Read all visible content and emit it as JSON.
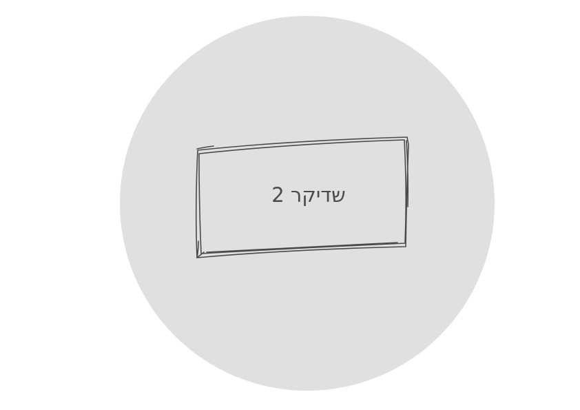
{
  "card": {
    "label": "שדיקר 2"
  },
  "colors": {
    "background": "#ffffff",
    "circle_fill": "#e0e0e0",
    "sketch_stroke": "#4a4a4a",
    "label_text": "#4a4a4a"
  }
}
